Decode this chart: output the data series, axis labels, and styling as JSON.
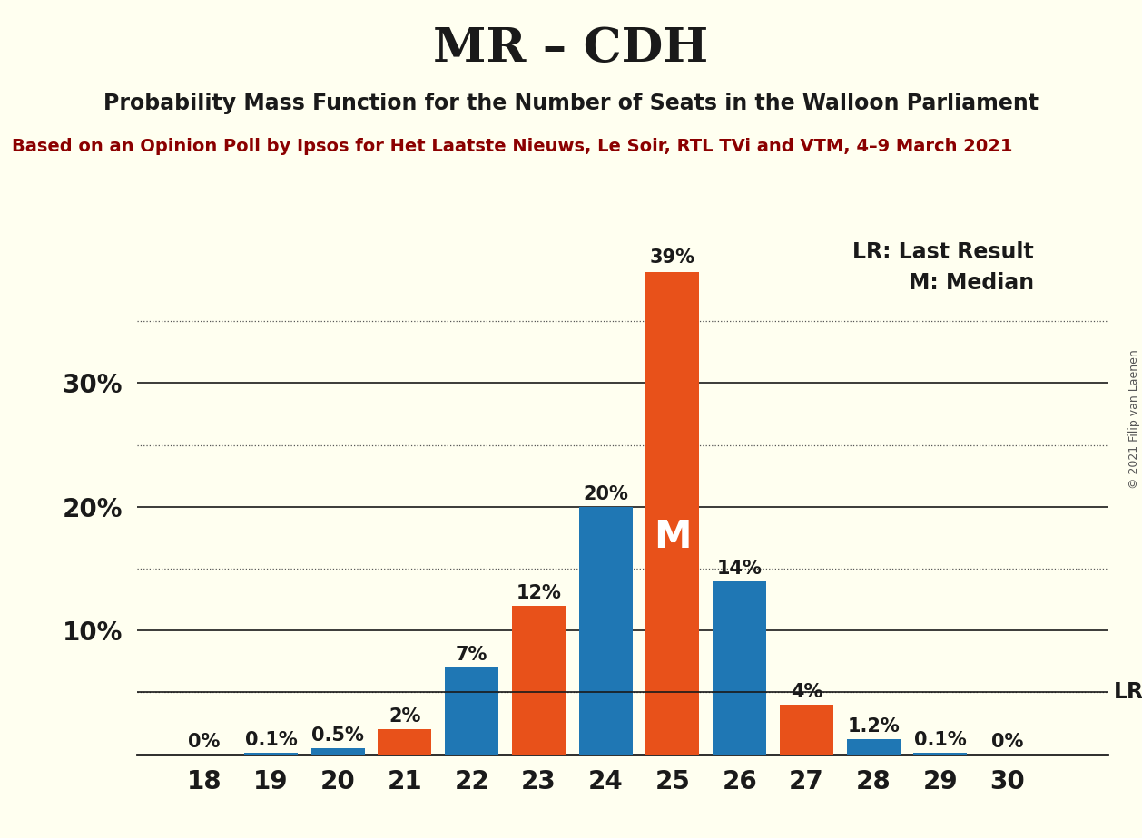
{
  "title": "MR – CDH",
  "subtitle": "Probability Mass Function for the Number of Seats in the Walloon Parliament",
  "source": "Based on an Opinion Poll by Ipsos for Het Laatste Nieuws, Le Soir, RTL TVi and VTM, 4–9 March 2021",
  "copyright": "© 2021 Filip van Laenen",
  "seats": [
    18,
    19,
    20,
    21,
    22,
    23,
    24,
    25,
    26,
    27,
    28,
    29,
    30
  ],
  "probabilities": [
    0.0,
    0.1,
    0.5,
    2.0,
    7.0,
    12.0,
    20.0,
    39.0,
    14.0,
    4.0,
    1.2,
    0.1,
    0.0
  ],
  "bar_colors": [
    "#1f77b4",
    "#1f77b4",
    "#1f77b4",
    "#e8511a",
    "#1f77b4",
    "#e8511a",
    "#1f77b4",
    "#e8511a",
    "#1f77b4",
    "#e8511a",
    "#1f77b4",
    "#1f77b4",
    "#1f77b4"
  ],
  "lr_value": 5.0,
  "median_seat": 25,
  "background_color": "#fffff0",
  "title_fontsize": 38,
  "subtitle_fontsize": 17,
  "source_fontsize": 14,
  "bar_label_fontsize": 15,
  "tick_fontsize": 20,
  "legend_fontsize": 17,
  "median_label_fontsize": 30,
  "ylim": [
    0,
    42
  ],
  "solid_yticks": [
    10,
    20,
    30
  ],
  "dotted_yticks": [
    5,
    15,
    25,
    35
  ],
  "source_color": "#8b0000",
  "text_color": "#1a1a1a",
  "copyright_color": "#555555"
}
